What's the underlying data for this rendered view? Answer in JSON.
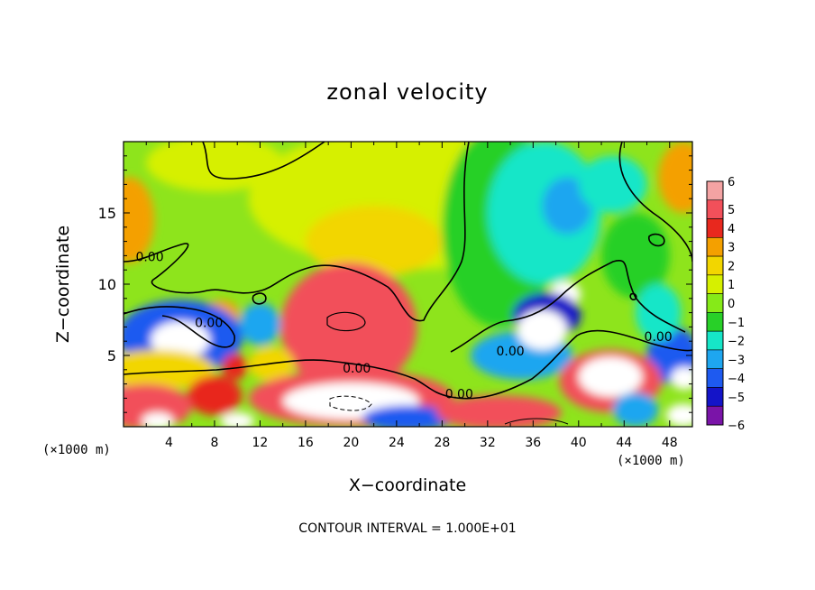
{
  "chart_data": {
    "type": "heatmap",
    "title": "zonal velocity",
    "xlabel": "X−coordinate",
    "ylabel": "Z−coordinate",
    "x_unit_label": "(×1000 m)",
    "x_ticks": [
      4,
      8,
      12,
      16,
      20,
      24,
      28,
      32,
      36,
      40,
      44,
      48
    ],
    "y_ticks": [
      5,
      10,
      15
    ],
    "xlim": [
      0,
      50
    ],
    "ylim": [
      0,
      20
    ],
    "colorbar": {
      "labels": [
        "6",
        "5",
        "4",
        "3",
        "2",
        "1",
        "0",
        "−1",
        "−2",
        "−3",
        "−4",
        "−5",
        "−6"
      ],
      "levels": [
        6,
        5,
        4,
        3,
        2,
        1,
        0,
        -1,
        -2,
        -3,
        -4,
        -5,
        -6
      ],
      "colors": [
        "#f4a3a3",
        "#f2505a",
        "#e8281e",
        "#f4a000",
        "#f2d600",
        "#d6f000",
        "#86ea18",
        "#28d028",
        "#16e6c8",
        "#1ea6f0",
        "#1e5af0",
        "#1414c8",
        "#7a14a8"
      ]
    },
    "contour_labels": [
      {
        "text": "0.00",
        "x": 2.3,
        "z": 11.6
      },
      {
        "text": "0.00",
        "x": 7.5,
        "z": 7.0
      },
      {
        "text": "0.00",
        "x": 20.5,
        "z": 3.8
      },
      {
        "text": "0.00",
        "x": 29.5,
        "z": 2.0
      },
      {
        "text": "0.00",
        "x": 34.0,
        "z": 5.0
      },
      {
        "text": "0.00",
        "x": 47.0,
        "z": 6.0
      }
    ],
    "contour_interval_text": "CONTOUR INTERVAL = 1.000E+01",
    "regions": [
      {
        "value": 1.2,
        "x": 25,
        "z": 16,
        "rx": 14,
        "rz": 5
      },
      {
        "value": 1.5,
        "x": 22,
        "z": 13,
        "rx": 6,
        "rz": 2.5
      },
      {
        "value": 2.8,
        "x": 0.5,
        "z": 14.5,
        "rx": 2.2,
        "rz": 3
      },
      {
        "value": 3.0,
        "x": 49.2,
        "z": 17.5,
        "rx": 2.2,
        "rz": 2.5
      },
      {
        "value": 0.6,
        "x": 8,
        "z": 18.5,
        "rx": 6,
        "rz": 2
      },
      {
        "value": -1.3,
        "x": 33,
        "z": 14,
        "rx": 5,
        "rz": 7
      },
      {
        "value": -2.4,
        "x": 37,
        "z": 15,
        "rx": 5,
        "rz": 5
      },
      {
        "value": -3.4,
        "x": 39,
        "z": 15.5,
        "rx": 2.2,
        "rz": 2
      },
      {
        "value": -2.0,
        "x": 43,
        "z": 17,
        "rx": 3,
        "rz": 2
      },
      {
        "value": -1.5,
        "x": 45,
        "z": 12,
        "rx": 3,
        "rz": 3
      },
      {
        "value": 6.5,
        "x": 19.5,
        "z": 7.8,
        "rx": 3.4,
        "rz": 2.6
      },
      {
        "value": 6.5,
        "x": 22,
        "z": 5.8,
        "rx": 3,
        "rz": 1.8
      },
      {
        "value": 4.5,
        "x": 19.8,
        "z": 7,
        "rx": 6,
        "rz": 4.5
      },
      {
        "value": 3.2,
        "x": 8.6,
        "z": 7.8,
        "rx": 1.6,
        "rz": 1.1
      },
      {
        "value": -4.5,
        "x": 5,
        "z": 6.3,
        "rx": 5.5,
        "rz": 2.6
      },
      {
        "value": -6.6,
        "x": 5,
        "z": 6.1,
        "rx": 2.6,
        "rz": 1.3
      },
      {
        "value": -3.5,
        "x": 12,
        "z": 7.2,
        "rx": 1.8,
        "rz": 1.5
      },
      {
        "value": -4.0,
        "x": 1,
        "z": 3.2,
        "rx": 1.6,
        "rz": 1.3
      },
      {
        "value": -3.0,
        "x": 35,
        "z": 5,
        "rx": 4.5,
        "rz": 1.7
      },
      {
        "value": -6.6,
        "x": 38.8,
        "z": 9.3,
        "rx": 1.4,
        "rz": 0.9
      },
      {
        "value": -5.0,
        "x": 37.2,
        "z": 7.8,
        "rx": 3,
        "rz": 1.6
      },
      {
        "value": 6.5,
        "x": 36.8,
        "z": 6.8,
        "rx": 2.2,
        "rz": 1.4
      },
      {
        "value": -4.0,
        "x": 48.3,
        "z": 5,
        "rx": 2.3,
        "rz": 2
      },
      {
        "value": -6.6,
        "x": 49.3,
        "z": 3.4,
        "rx": 1.2,
        "rz": 0.8
      },
      {
        "value": 2.2,
        "x": 3,
        "z": 4,
        "rx": 5,
        "rz": 1.4
      },
      {
        "value": 4.2,
        "x": 9.8,
        "z": 4.2,
        "rx": 1.1,
        "rz": 0.9
      },
      {
        "value": 1.8,
        "x": 13,
        "z": 4.4,
        "rx": 2,
        "rz": 1.2
      },
      {
        "value": 4.0,
        "x": 8,
        "z": 2.2,
        "rx": 2.4,
        "rz": 1.4
      },
      {
        "value": 5.0,
        "x": 2,
        "z": 1.4,
        "rx": 4,
        "rz": 1.6
      },
      {
        "value": 5.0,
        "x": 20,
        "z": 2.0,
        "rx": 9,
        "rz": 2.0
      },
      {
        "value": 6.5,
        "x": 20,
        "z": 1.8,
        "rx": 6,
        "rz": 1.3
      },
      {
        "value": -4.0,
        "x": 25,
        "z": 0.6,
        "rx": 4,
        "rz": 0.9
      },
      {
        "value": 4.5,
        "x": 33,
        "z": 1.0,
        "rx": 5.5,
        "rz": 1.2
      },
      {
        "value": 5.0,
        "x": 42.8,
        "z": 3.2,
        "rx": 4.5,
        "rz": 2.2
      },
      {
        "value": 6.5,
        "x": 42.8,
        "z": 3.5,
        "rx": 2.8,
        "rz": 1.4
      },
      {
        "value": -3.5,
        "x": 45,
        "z": 1.2,
        "rx": 2,
        "rz": 1.2
      },
      {
        "value": 6.5,
        "x": 49.2,
        "z": 0.8,
        "rx": 1.5,
        "rz": 0.8
      },
      {
        "value": 6.5,
        "x": 10,
        "z": 0.4,
        "rx": 1.5,
        "rz": 0.6
      },
      {
        "value": 6.5,
        "x": 3,
        "z": 0.4,
        "rx": 1.4,
        "rz": 0.6
      },
      {
        "value": -2.0,
        "x": 47,
        "z": 8,
        "rx": 2,
        "rz": 2
      }
    ]
  }
}
